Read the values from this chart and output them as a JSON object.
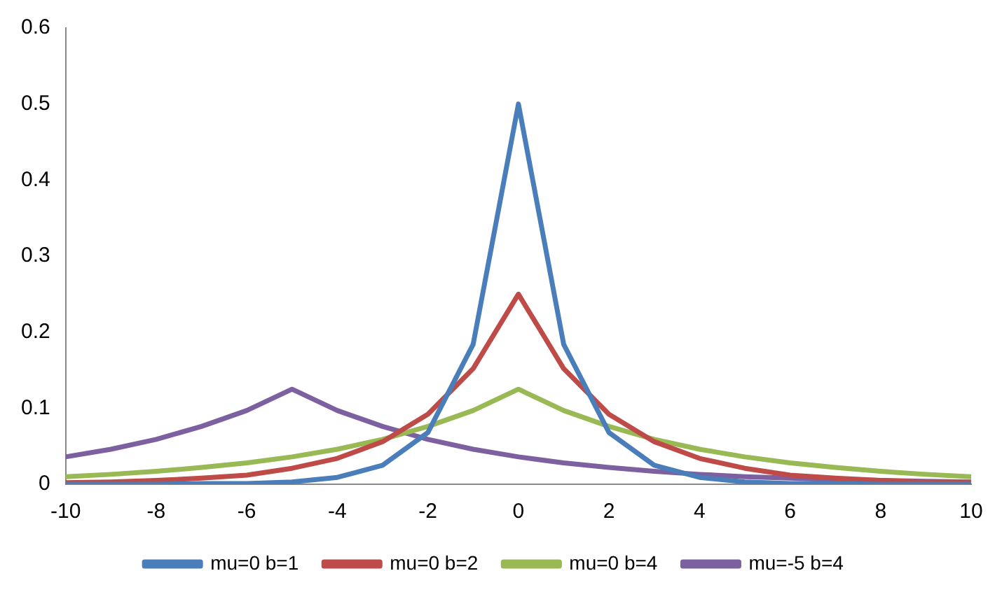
{
  "chart_data": {
    "type": "line",
    "x": [
      -10,
      -9,
      -8,
      -7,
      -6,
      -5,
      -4,
      -3,
      -2,
      -1,
      0,
      1,
      2,
      3,
      4,
      5,
      6,
      7,
      8,
      9,
      10
    ],
    "xlim": [
      -10,
      10
    ],
    "xticks": [
      -10,
      -8,
      -6,
      -4,
      -2,
      0,
      2,
      4,
      6,
      8,
      10
    ],
    "ylim": [
      0,
      0.6
    ],
    "yticks": [
      0,
      0.1,
      0.2,
      0.3,
      0.4,
      0.5,
      0.6
    ],
    "legend": "bottom",
    "series": [
      {
        "name": "mu=0 b=1",
        "color": "#4a7ebb",
        "values": [
          0,
          0,
          0,
          0.001,
          0.001,
          0.003,
          0.009,
          0.025,
          0.068,
          0.184,
          0.5,
          0.184,
          0.068,
          0.025,
          0.009,
          0.003,
          0.001,
          0.001,
          0,
          0,
          0
        ]
      },
      {
        "name": "mu=0 b=2",
        "color": "#be4b48",
        "values": [
          0.002,
          0.003,
          0.005,
          0.008,
          0.012,
          0.021,
          0.034,
          0.056,
          0.092,
          0.152,
          0.25,
          0.152,
          0.092,
          0.056,
          0.034,
          0.021,
          0.012,
          0.008,
          0.005,
          0.003,
          0.002
        ]
      },
      {
        "name": "mu=0 b=4",
        "color": "#98b954",
        "values": [
          0.01,
          0.013,
          0.017,
          0.022,
          0.028,
          0.036,
          0.046,
          0.059,
          0.076,
          0.097,
          0.125,
          0.097,
          0.076,
          0.059,
          0.046,
          0.036,
          0.028,
          0.022,
          0.017,
          0.013,
          0.01
        ]
      },
      {
        "name": "mu=-5 b=4",
        "color": "#7d60a0",
        "values": [
          0.036,
          0.046,
          0.059,
          0.076,
          0.097,
          0.125,
          0.097,
          0.076,
          0.059,
          0.046,
          0.036,
          0.028,
          0.022,
          0.017,
          0.013,
          0.01,
          0.008,
          0.006,
          0.005,
          0.004,
          0.003
        ]
      }
    ]
  }
}
